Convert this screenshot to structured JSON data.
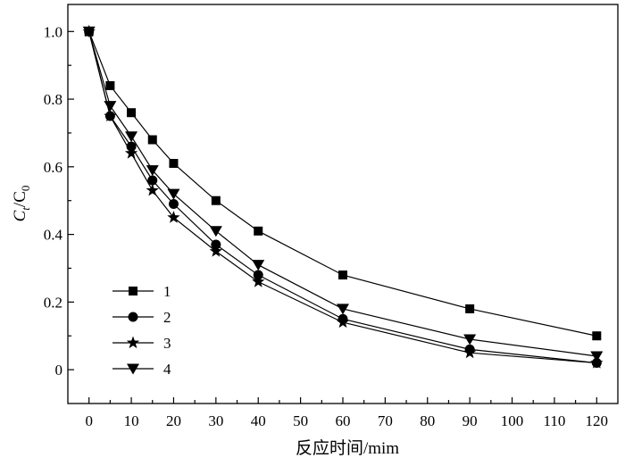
{
  "chart_data": {
    "type": "line",
    "xlabel": "反应时间/mim",
    "ylabel": {
      "main": "C",
      "sub1": "t",
      "mid": "/C",
      "sub2": "0"
    },
    "xlim": [
      -5,
      125
    ],
    "ylim": [
      -0.1,
      1.08
    ],
    "xticks": [
      0,
      10,
      20,
      30,
      40,
      50,
      60,
      70,
      80,
      90,
      100,
      110,
      120
    ],
    "xtick_labels": [
      "0",
      "10",
      "20",
      "30",
      "40",
      "50",
      "60",
      "70",
      "80",
      "90",
      "100",
      "110",
      "120"
    ],
    "xminor": [
      5,
      15,
      25,
      35,
      45,
      55,
      65,
      75,
      85,
      95,
      105,
      115
    ],
    "yticks": [
      0,
      0.2,
      0.4,
      0.6,
      0.8,
      1.0
    ],
    "ytick_labels": [
      "0",
      "0.2",
      "0.4",
      "0.6",
      "0.8",
      "1.0"
    ],
    "yminor": [
      0.1,
      0.3,
      0.5,
      0.7,
      0.9
    ],
    "grid": false,
    "legend_position": "lower-left",
    "x": [
      0,
      5,
      10,
      15,
      20,
      30,
      40,
      60,
      90,
      120
    ],
    "series": [
      {
        "name": "1",
        "marker": "square",
        "values": [
          1.0,
          0.84,
          0.76,
          0.68,
          0.61,
          0.5,
          0.41,
          0.28,
          0.18,
          0.1
        ]
      },
      {
        "name": "2",
        "marker": "circle",
        "values": [
          1.0,
          0.75,
          0.66,
          0.56,
          0.49,
          0.37,
          0.28,
          0.15,
          0.06,
          0.02
        ]
      },
      {
        "name": "3",
        "marker": "star",
        "values": [
          1.0,
          0.75,
          0.64,
          0.53,
          0.45,
          0.35,
          0.26,
          0.14,
          0.05,
          0.02
        ]
      },
      {
        "name": "4",
        "marker": "triangle-down",
        "values": [
          1.0,
          0.78,
          0.69,
          0.59,
          0.52,
          0.41,
          0.31,
          0.18,
          0.09,
          0.04
        ]
      }
    ],
    "colors": {
      "line": "#000000",
      "background": "#ffffff"
    }
  }
}
